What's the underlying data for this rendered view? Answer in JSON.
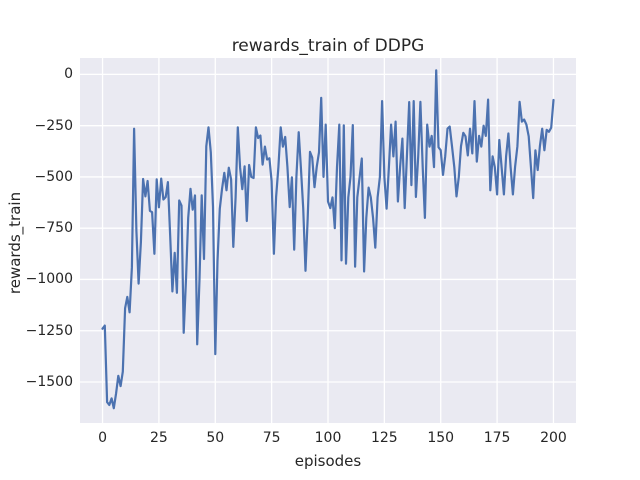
{
  "figure": {
    "title": "rewards_train of DDPG",
    "background_color": "#ffffff"
  },
  "colors": {
    "line": "#4c72b0",
    "axes_background": "#eaeaf2",
    "grid": "#ffffff",
    "text": "#262626"
  },
  "chart_data": {
    "type": "line",
    "title": "rewards_train of DDPG",
    "xlabel": "episodes",
    "ylabel": "rewards_train",
    "grid": true,
    "legend": false,
    "style": "seaborn-darkgrid",
    "xlim": [
      -10,
      210
    ],
    "ylim": [
      -1700,
      80
    ],
    "x_ticks": [
      0,
      25,
      50,
      75,
      100,
      125,
      150,
      175,
      200
    ],
    "x_tick_labels": [
      "0",
      "25",
      "50",
      "75",
      "100",
      "125",
      "150",
      "175",
      "200"
    ],
    "y_ticks": [
      0,
      -250,
      -500,
      -750,
      -1000,
      -1250,
      -1500
    ],
    "y_tick_labels": [
      "0",
      "−250",
      "−500",
      "−750",
      "−1000",
      "−1250",
      "−1500"
    ],
    "series": [
      {
        "name": "rewards_train",
        "color": "#4c72b0",
        "x": [
          0,
          1,
          2,
          3,
          4,
          5,
          6,
          7,
          8,
          9,
          10,
          11,
          12,
          13,
          14,
          15,
          16,
          17,
          18,
          19,
          20,
          21,
          22,
          23,
          24,
          25,
          26,
          27,
          28,
          29,
          30,
          31,
          32,
          33,
          34,
          35,
          36,
          37,
          38,
          39,
          40,
          41,
          42,
          43,
          44,
          45,
          46,
          47,
          48,
          49,
          50,
          51,
          52,
          53,
          54,
          55,
          56,
          57,
          58,
          59,
          60,
          61,
          62,
          63,
          64,
          65,
          66,
          67,
          68,
          69,
          70,
          71,
          72,
          73,
          74,
          75,
          76,
          77,
          78,
          79,
          80,
          81,
          82,
          83,
          84,
          85,
          86,
          87,
          88,
          89,
          90,
          91,
          92,
          93,
          94,
          95,
          96,
          97,
          98,
          99,
          100,
          101,
          102,
          103,
          104,
          105,
          106,
          107,
          108,
          109,
          110,
          111,
          112,
          113,
          114,
          115,
          116,
          117,
          118,
          119,
          120,
          121,
          122,
          123,
          124,
          125,
          126,
          127,
          128,
          129,
          130,
          131,
          132,
          133,
          134,
          135,
          136,
          137,
          138,
          139,
          140,
          141,
          142,
          143,
          144,
          145,
          146,
          147,
          148,
          149,
          150,
          151,
          152,
          153,
          154,
          155,
          156,
          157,
          158,
          159,
          160,
          161,
          162,
          163,
          164,
          165,
          166,
          167,
          168,
          169,
          170,
          171,
          172,
          173,
          174,
          175,
          176,
          177,
          178,
          179,
          180,
          181,
          182,
          183,
          184,
          185,
          186,
          187,
          188,
          189,
          190,
          191,
          192,
          193,
          194,
          195,
          196,
          197,
          198,
          199,
          200
        ],
        "y": [
          -1240,
          -1225,
          -1598,
          -1612,
          -1580,
          -1628,
          -1555,
          -1470,
          -1520,
          -1450,
          -1140,
          -1085,
          -1160,
          -940,
          -265,
          -763,
          -1020,
          -818,
          -510,
          -595,
          -520,
          -665,
          -672,
          -875,
          -512,
          -648,
          -508,
          -610,
          -598,
          -525,
          -790,
          -1058,
          -870,
          -1065,
          -615,
          -640,
          -1260,
          -1000,
          -700,
          -558,
          -660,
          -590,
          -1316,
          -1000,
          -590,
          -900,
          -350,
          -258,
          -380,
          -645,
          -1364,
          -910,
          -655,
          -560,
          -480,
          -565,
          -455,
          -512,
          -841,
          -600,
          -258,
          -455,
          -560,
          -448,
          -715,
          -442,
          -500,
          -505,
          -258,
          -310,
          -298,
          -440,
          -352,
          -415,
          -409,
          -520,
          -875,
          -598,
          -452,
          -258,
          -352,
          -305,
          -450,
          -647,
          -502,
          -855,
          -500,
          -282,
          -455,
          -652,
          -958,
          -700,
          -378,
          -405,
          -550,
          -452,
          -380,
          -114,
          -500,
          -245,
          -620,
          -652,
          -600,
          -750,
          -452,
          -245,
          -907,
          -248,
          -923,
          -600,
          -500,
          -247,
          -938,
          -600,
          -502,
          -410,
          -961,
          -700,
          -552,
          -600,
          -702,
          -845,
          -600,
          -500,
          -130,
          -502,
          -655,
          -452,
          -245,
          -400,
          -230,
          -620,
          -452,
          -313,
          -652,
          -400,
          -135,
          -540,
          -130,
          -598,
          -400,
          -134,
          -452,
          -700,
          -245,
          -352,
          -300,
          -452,
          20,
          -355,
          -370,
          -490,
          -400,
          -265,
          -254,
          -350,
          -452,
          -595,
          -500,
          -350,
          -285,
          -302,
          -395,
          -265,
          -385,
          -130,
          -425,
          -300,
          -352,
          -250,
          -300,
          -123,
          -565,
          -400,
          -452,
          -585,
          -320,
          -452,
          -585,
          -400,
          -288,
          -452,
          -585,
          -450,
          -350,
          -134,
          -230,
          -220,
          -245,
          -302,
          -450,
          -603,
          -370,
          -466,
          -350,
          -265,
          -370,
          -270,
          -280,
          -260,
          -125
        ]
      }
    ]
  }
}
